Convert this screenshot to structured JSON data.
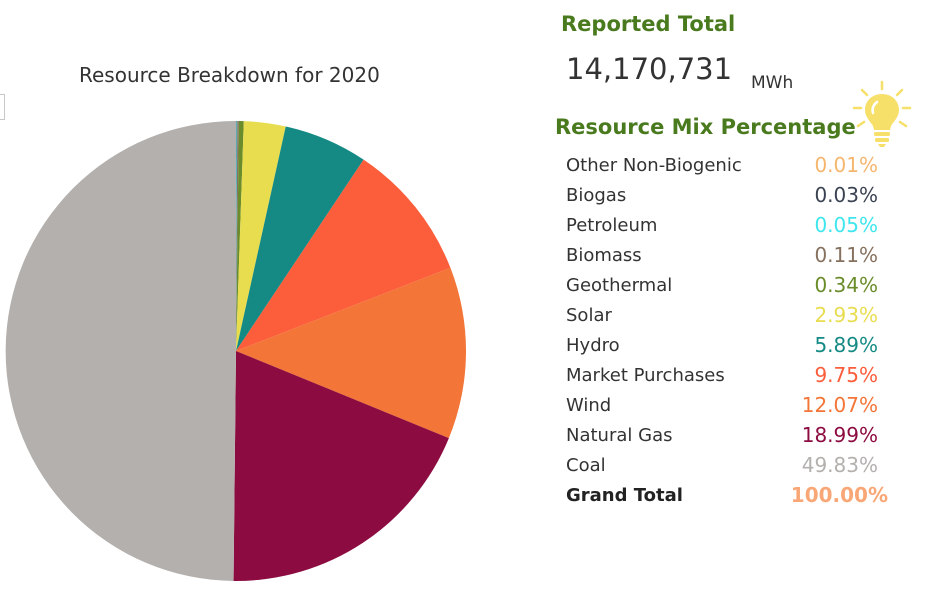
{
  "chart_data": {
    "type": "pie",
    "title": "Resource Breakdown for 2020",
    "categories": [
      "Other Non-Biogenic",
      "Biogas",
      "Petroleum",
      "Biomass",
      "Geothermal",
      "Solar",
      "Hydro",
      "Market Purchases",
      "Wind",
      "Natural Gas",
      "Coal"
    ],
    "values": [
      0.01,
      0.03,
      0.05,
      0.11,
      0.34,
      2.93,
      5.89,
      9.75,
      12.07,
      18.99,
      49.83
    ],
    "colors": [
      "#f5b66e",
      "#3b4352",
      "#3fe6ee",
      "#86715f",
      "#6b8c2b",
      "#e8dd4f",
      "#158a84",
      "#fc5d3b",
      "#f37537",
      "#8c0b40",
      "#b3b0ad"
    ],
    "legend": "none"
  },
  "reported": {
    "title": "Reported Total",
    "value": "14,170,731",
    "unit": "MWh"
  },
  "mix": {
    "title": "Resource Mix Percentage",
    "rows": [
      {
        "label": "Other Non-Biogenic",
        "pct": "0.01%",
        "color": "#f5b66e"
      },
      {
        "label": "Biogas",
        "pct": "0.03%",
        "color": "#3b4352"
      },
      {
        "label": "Petroleum",
        "pct": "0.05%",
        "color": "#3fe6ee"
      },
      {
        "label": "Biomass",
        "pct": "0.11%",
        "color": "#86715f"
      },
      {
        "label": "Geothermal",
        "pct": "0.34%",
        "color": "#6b8c2b"
      },
      {
        "label": "Solar",
        "pct": "2.93%",
        "color": "#e8dd4f"
      },
      {
        "label": "Hydro",
        "pct": "5.89%",
        "color": "#158a84"
      },
      {
        "label": "Market Purchases",
        "pct": "9.75%",
        "color": "#fc5d3b"
      },
      {
        "label": "Wind",
        "pct": "12.07%",
        "color": "#f37537"
      },
      {
        "label": "Natural Gas",
        "pct": "18.99%",
        "color": "#8c0b40"
      },
      {
        "label": "Coal",
        "pct": "49.83%",
        "color": "#b3b0ad"
      }
    ],
    "grand_total": {
      "label": "Grand Total",
      "pct": "100.00%",
      "color": "#f9a777"
    }
  },
  "icons": {
    "bulb": "lightbulb-icon",
    "bulb_color": "#f7e06a"
  }
}
